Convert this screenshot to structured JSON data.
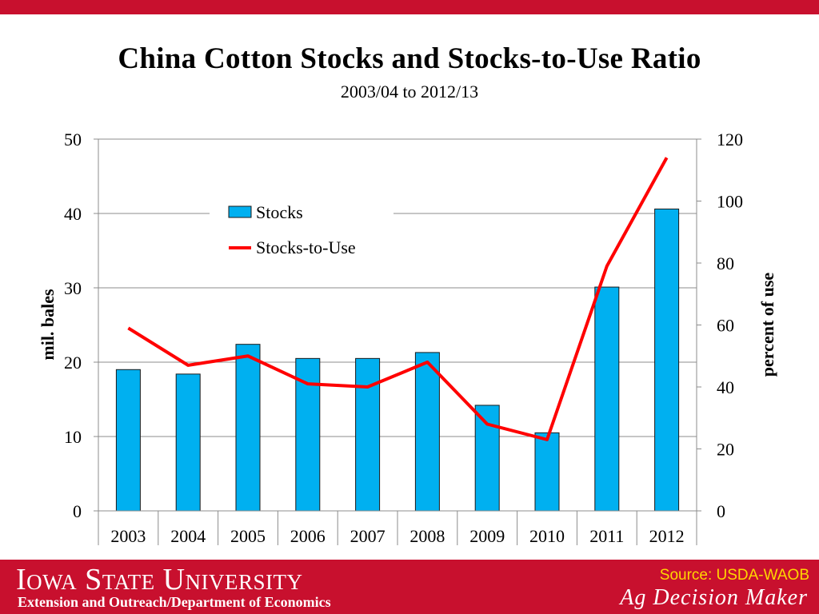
{
  "colors": {
    "accent": "#c8102e",
    "bar": "#00b0f0",
    "line": "#ff0000",
    "source_text": "#ffd700"
  },
  "chart_data": {
    "type": "bar",
    "title": "China Cotton Stocks and Stocks-to-Use Ratio",
    "subtitle": "2003/04 to 2012/13",
    "categories": [
      "2003",
      "2004",
      "2005",
      "2006",
      "2007",
      "2008",
      "2009",
      "2010",
      "2011",
      "2012"
    ],
    "series": [
      {
        "name": "Stocks",
        "type": "bar",
        "axis": "left",
        "values": [
          19.0,
          18.4,
          22.4,
          20.5,
          20.5,
          21.3,
          14.2,
          10.5,
          30.1,
          40.6
        ]
      },
      {
        "name": "Stocks-to-Use",
        "type": "line",
        "axis": "right",
        "values": [
          59,
          47,
          50,
          41,
          40,
          48,
          28,
          23,
          79,
          114
        ]
      }
    ],
    "ylabel": "mil. bales",
    "ylim": [
      0,
      50
    ],
    "yticks": [
      "0",
      "10",
      "20",
      "30",
      "40",
      "50"
    ],
    "y2label": "percent of use",
    "y2lim": [
      0,
      120
    ],
    "y2ticks": [
      "0",
      "20",
      "40",
      "60",
      "80",
      "100",
      "120"
    ],
    "grid": true,
    "legend_placement": "top-left"
  },
  "footer": {
    "university": "Iowa State University",
    "department": "Extension and Outreach/Department of Economics",
    "source": "Source: USDA-WAOB",
    "brand": "Ag Decision Maker"
  }
}
